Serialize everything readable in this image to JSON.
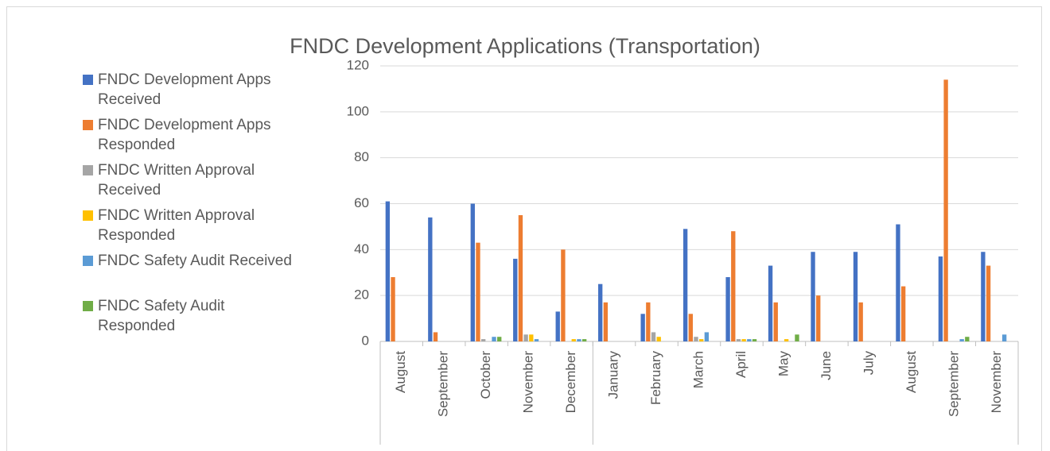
{
  "chart_data": {
    "type": "bar",
    "title": "FNDC Development Applications (Transportation)",
    "categories": [
      "August",
      "September",
      "October",
      "November",
      "December",
      "January",
      "February",
      "March",
      "April",
      "May",
      "June",
      "July",
      "August",
      "September",
      "November"
    ],
    "series": [
      {
        "name": "FNDC Development Apps Received",
        "color": "#4472c4",
        "values": [
          61,
          54,
          60,
          36,
          13,
          25,
          12,
          49,
          28,
          33,
          39,
          39,
          51,
          37,
          39
        ]
      },
      {
        "name": "FNDC Development Apps Responded",
        "color": "#ed7d31",
        "values": [
          28,
          4,
          43,
          55,
          40,
          17,
          17,
          12,
          48,
          17,
          20,
          17,
          24,
          114,
          33
        ]
      },
      {
        "name": "FNDC Written Approval Received",
        "color": "#a5a5a5",
        "values": [
          0,
          0,
          1,
          3,
          0,
          0,
          4,
          2,
          1,
          0,
          0,
          0,
          0,
          0,
          0
        ]
      },
      {
        "name": "FNDC Written Approval Responded",
        "color": "#ffc000",
        "values": [
          0,
          0,
          0,
          3,
          1,
          0,
          2,
          1,
          1,
          1,
          0,
          0,
          0,
          0,
          0
        ]
      },
      {
        "name": "FNDC Safety Audit Received",
        "color": "#5b9bd5",
        "values": [
          0,
          0,
          2,
          1,
          1,
          0,
          0,
          4,
          1,
          0,
          0,
          0,
          0,
          1,
          3
        ]
      },
      {
        "name": "FNDC Safety Audit Responded",
        "color": "#70ad47",
        "values": [
          0,
          0,
          2,
          0,
          1,
          0,
          0,
          0,
          1,
          3,
          0,
          0,
          0,
          2,
          0
        ]
      }
    ],
    "ylim": [
      0,
      120
    ],
    "yticks": [
      0,
      20,
      40,
      60,
      80,
      100,
      120
    ],
    "grid": true,
    "legend": "left"
  }
}
